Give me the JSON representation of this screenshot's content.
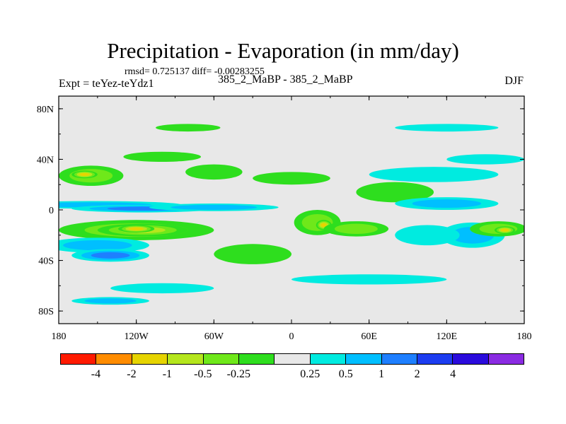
{
  "chart_data": {
    "type": "heatmap",
    "title": "Precipitation - Evaporation (in mm/day)",
    "stats": "rmsd= 0.725137 diff= -0.00283255",
    "experiment": "Expt = teYez-teYdz1",
    "runs": "385_2_MaBP - 385_2_MaBP",
    "season": "DJF",
    "x_ticks": [
      "180",
      "120W",
      "60W",
      "0",
      "60E",
      "120E",
      "180"
    ],
    "x_tick_values": [
      -180,
      -120,
      -60,
      0,
      60,
      120,
      180
    ],
    "y_ticks": [
      "80N",
      "40N",
      "0",
      "40S",
      "80S"
    ],
    "y_tick_values": [
      80,
      40,
      0,
      -40,
      -80
    ],
    "xlim": [
      -180,
      180
    ],
    "ylim": [
      -90,
      90
    ],
    "colorbar": {
      "levels": [
        "-4",
        "-2",
        "-1",
        "-0.5",
        "-0.25",
        "0.25",
        "0.5",
        "1",
        "2",
        "4"
      ],
      "colors": [
        "#ff1a00",
        "#ff8c00",
        "#e6d400",
        "#b5e61d",
        "#6fe81a",
        "#2ede1e",
        "#e8e8e8",
        "#00ebe0",
        "#00bfff",
        "#1e7fff",
        "#1c3cf0",
        "#2a0bdc",
        "#8a2be2"
      ]
    },
    "field_blobs": [
      {
        "lon": -180,
        "lat": 0,
        "rx": 360,
        "ry": 4,
        "cls": 0
      },
      {
        "lon": -155,
        "lat": 4,
        "rx": 70,
        "ry": 3,
        "cls": -2
      },
      {
        "lon": -115,
        "lat": 1,
        "rx": 55,
        "ry": 3,
        "cls": -3
      },
      {
        "lon": -60,
        "lat": 2,
        "rx": 50,
        "ry": 3,
        "cls": -2
      },
      {
        "lon": -120,
        "lat": -16,
        "rx": 60,
        "ry": 8,
        "cls": 2
      },
      {
        "lon": -115,
        "lat": -16,
        "rx": 35,
        "ry": 5,
        "cls": 3
      },
      {
        "lon": -120,
        "lat": -15,
        "rx": 14,
        "ry": 3,
        "cls": 4
      },
      {
        "lon": -150,
        "lat": -28,
        "rx": 40,
        "ry": 6,
        "cls": -2
      },
      {
        "lon": -140,
        "lat": -36,
        "rx": 30,
        "ry": 5,
        "cls": -3
      },
      {
        "lon": -155,
        "lat": 27,
        "rx": 25,
        "ry": 8,
        "cls": 2
      },
      {
        "lon": -160,
        "lat": 28,
        "rx": 10,
        "ry": 3,
        "cls": 4
      },
      {
        "lon": -100,
        "lat": 42,
        "rx": 30,
        "ry": 4,
        "cls": 1
      },
      {
        "lon": -60,
        "lat": 30,
        "rx": 22,
        "ry": 6,
        "cls": 1
      },
      {
        "lon": 20,
        "lat": -10,
        "rx": 18,
        "ry": 10,
        "cls": 2
      },
      {
        "lon": 25,
        "lat": -12,
        "rx": 6,
        "ry": 4,
        "cls": 4
      },
      {
        "lon": 50,
        "lat": -15,
        "rx": 25,
        "ry": 6,
        "cls": 2
      },
      {
        "lon": 80,
        "lat": 14,
        "rx": 30,
        "ry": 8,
        "cls": 1
      },
      {
        "lon": 120,
        "lat": 5,
        "rx": 40,
        "ry": 5,
        "cls": -2
      },
      {
        "lon": 140,
        "lat": -20,
        "rx": 25,
        "ry": 10,
        "cls": -2
      },
      {
        "lon": 160,
        "lat": -15,
        "rx": 22,
        "ry": 6,
        "cls": 2
      },
      {
        "lon": 165,
        "lat": -16,
        "rx": 8,
        "ry": 3,
        "cls": 4
      },
      {
        "lon": 105,
        "lat": -20,
        "rx": 25,
        "ry": 8,
        "cls": -1
      },
      {
        "lon": 110,
        "lat": 28,
        "rx": 50,
        "ry": 6,
        "cls": -1
      },
      {
        "lon": 150,
        "lat": 40,
        "rx": 30,
        "ry": 4,
        "cls": -1
      },
      {
        "lon": 0,
        "lat": 25,
        "rx": 30,
        "ry": 5,
        "cls": 1
      },
      {
        "lon": -30,
        "lat": -35,
        "rx": 30,
        "ry": 8,
        "cls": 1
      },
      {
        "lon": 60,
        "lat": -55,
        "rx": 60,
        "ry": 4,
        "cls": -1
      },
      {
        "lon": -100,
        "lat": -62,
        "rx": 40,
        "ry": 4,
        "cls": -1
      },
      {
        "lon": -140,
        "lat": -72,
        "rx": 30,
        "ry": 3,
        "cls": -2
      },
      {
        "lon": 120,
        "lat": 65,
        "rx": 40,
        "ry": 3,
        "cls": -1
      },
      {
        "lon": -80,
        "lat": 65,
        "rx": 25,
        "ry": 3,
        "cls": 1
      }
    ]
  }
}
